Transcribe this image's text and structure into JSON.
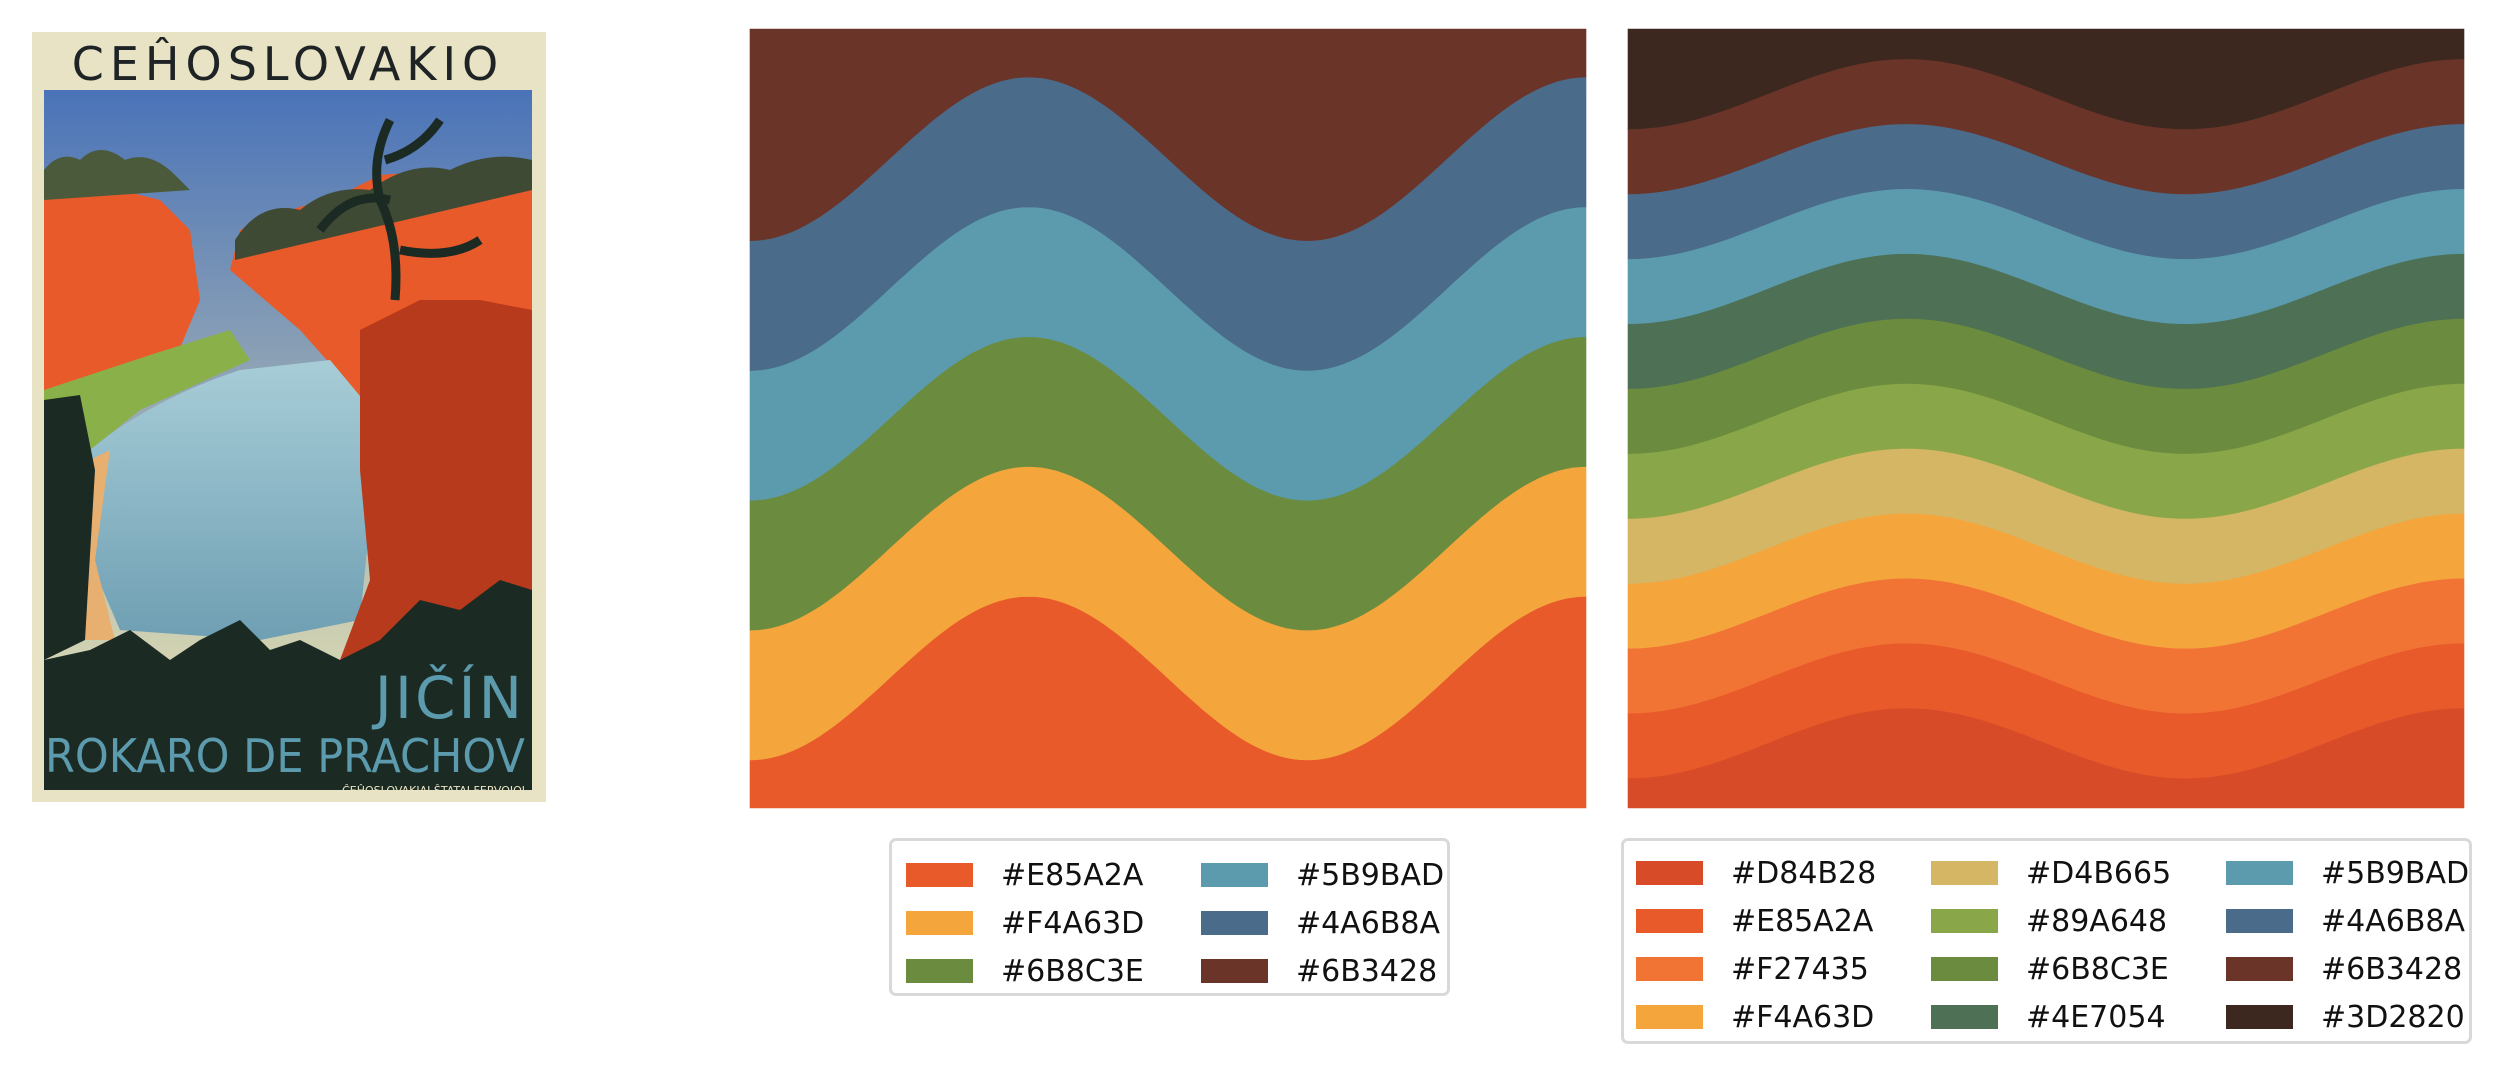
{
  "poster": {
    "title_top": "CEĤOSLOVAKIO",
    "title_city": "JIČÍN",
    "title_place": "ROKARO DE PRACHOV",
    "credit": "ĈEĤOSLOVAKIAJ ŜTATAJ FERVOJOJ",
    "colors": {
      "frame": "#e8e3c4",
      "sky_top": "#4a73b8",
      "sky_bottom": "#f2e9b0",
      "rock": "#e85a2a",
      "rock_dark": "#b83a1c",
      "shadow": "#1c2a24",
      "water": "#8fb9c9",
      "grass": "#8ab04a",
      "text_dark": "#1e2326",
      "text_teal": "#5b9bad"
    }
  },
  "chart_data": [
    {
      "type": "area",
      "name": "streamgraph-6",
      "colors": [
        "#E85A2A",
        "#F4A63D",
        "#6B8C3E",
        "#5B9BAD",
        "#4A6B8A",
        "#6B3428"
      ],
      "legend": [
        "#E85A2A",
        "#F4A63D",
        "#6B8C3E",
        "#5B9BAD",
        "#4A6B8A",
        "#6B3428"
      ],
      "legend_columns": 2
    },
    {
      "type": "area",
      "name": "streamgraph-12",
      "colors": [
        "#D84B28",
        "#E85A2A",
        "#F27435",
        "#F4A63D",
        "#D4B665",
        "#89A648",
        "#6B8C3E",
        "#4E7054",
        "#5B9BAD",
        "#4A6B8A",
        "#6B3428",
        "#3D2820"
      ],
      "legend": [
        "#D84B28",
        "#E85A2A",
        "#F27435",
        "#F4A63D",
        "#D4B665",
        "#89A648",
        "#6B8C3E",
        "#4E7054",
        "#5B9BAD",
        "#4A6B8A",
        "#6B3428",
        "#3D2820"
      ],
      "legend_columns": 3
    }
  ]
}
